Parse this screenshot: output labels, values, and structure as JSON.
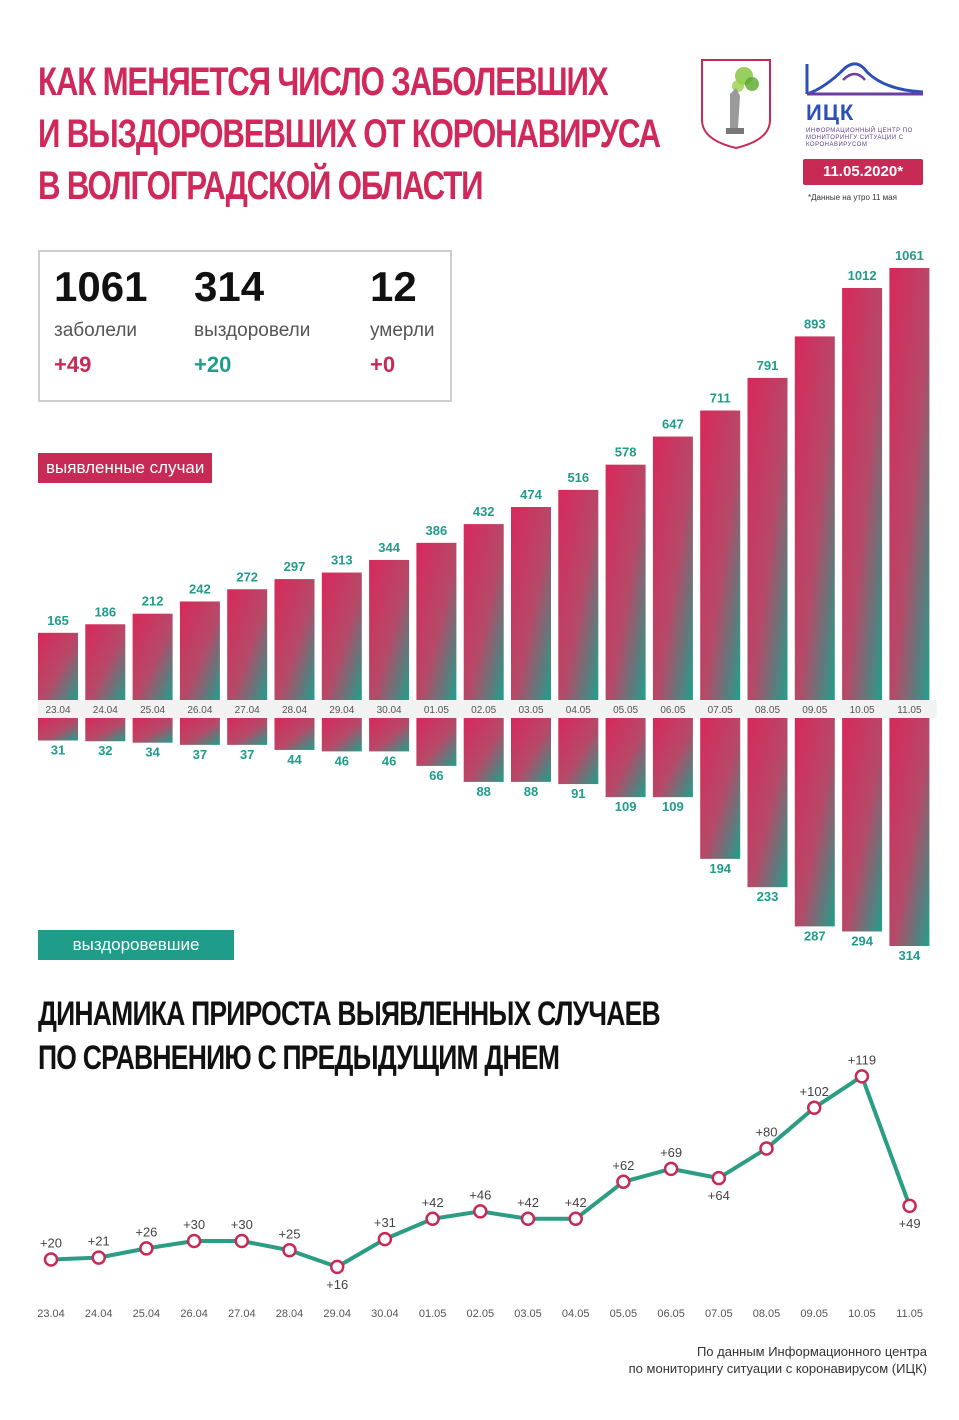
{
  "header": {
    "title_lines": [
      "КАК МЕНЯЕТСЯ ЧИСЛО ЗАБОЛЕВШИХ",
      "И ВЫЗДОРОВЕВШИХ ОТ КОРОНАВИРУСА",
      "В ВОЛГОГРАДСКОЙ ОБЛАСТИ"
    ],
    "logo_name": "ИЦК",
    "logo_subtitle": "ИНФОРМАЦИОННЫЙ ЦЕНТР ПО МОНИТОРИНГУ СИТУАЦИИ С КОРОНАВИРУСОМ",
    "date": "11.05.2020*",
    "date_note": "*Данные на утро 11 мая",
    "emblem_icon": "volgograd-emblem-icon",
    "logo_icon": "mountain-logo-icon"
  },
  "stats": [
    {
      "value": "1061",
      "label": "заболели",
      "delta": "+49"
    },
    {
      "value": "314",
      "label": "выздоровели",
      "delta": "+20"
    },
    {
      "value": "12",
      "label": "умерли",
      "delta": "+0"
    }
  ],
  "labels": {
    "cases": "выявленные случаи",
    "recovered": "выздоровевшие"
  },
  "line_title": [
    "ДИНАМИКА ПРИРОСТА ВЫЯВЛЕННЫХ СЛУЧАЕВ",
    "ПО СРАВНЕНИЮ С ПРЕДЫДУЩИМ ДНЕМ"
  ],
  "source_lines": [
    "По данным Информационного центра",
    "по мониторингу ситуации с коронавирусом (ИЦК)"
  ],
  "colors": {
    "pink": "#c72a55",
    "teal": "#1f9d8a",
    "line": "#2a9d84",
    "marker": "#c72a55"
  },
  "chart_data": [
    {
      "type": "bar",
      "categories": [
        "23.04",
        "24.04",
        "25.04",
        "26.04",
        "27.04",
        "28.04",
        "29.04",
        "30.04",
        "01.05",
        "02.05",
        "03.05",
        "04.05",
        "05.05",
        "06.05",
        "07.05",
        "08.05",
        "09.05",
        "10.05",
        "11.05"
      ],
      "series": [
        {
          "name": "выявленные случаи",
          "values": [
            165,
            186,
            212,
            242,
            272,
            297,
            313,
            344,
            386,
            432,
            474,
            516,
            578,
            647,
            711,
            791,
            893,
            1012,
            1061
          ]
        },
        {
          "name": "выздоровевшие",
          "values": [
            31,
            32,
            34,
            37,
            37,
            44,
            46,
            46,
            66,
            88,
            88,
            91,
            109,
            109,
            194,
            233,
            287,
            294,
            314
          ]
        }
      ]
    },
    {
      "type": "line",
      "categories": [
        "23.04",
        "24.04",
        "25.04",
        "26.04",
        "27.04",
        "28.04",
        "29.04",
        "30.04",
        "01.05",
        "02.05",
        "03.05",
        "04.05",
        "05.05",
        "06.05",
        "07.05",
        "08.05",
        "09.05",
        "10.05",
        "11.05"
      ],
      "values": [
        20,
        21,
        26,
        30,
        30,
        25,
        16,
        31,
        42,
        46,
        42,
        42,
        62,
        69,
        64,
        80,
        102,
        119,
        49
      ],
      "labels": [
        "+20",
        "+21",
        "+26",
        "+30",
        "+30",
        "+25",
        "+16",
        "+31",
        "+42",
        "+46",
        "+42",
        "+42",
        "+62",
        "+69",
        "+64",
        "+80",
        "+102",
        "+119",
        "+49"
      ]
    }
  ]
}
